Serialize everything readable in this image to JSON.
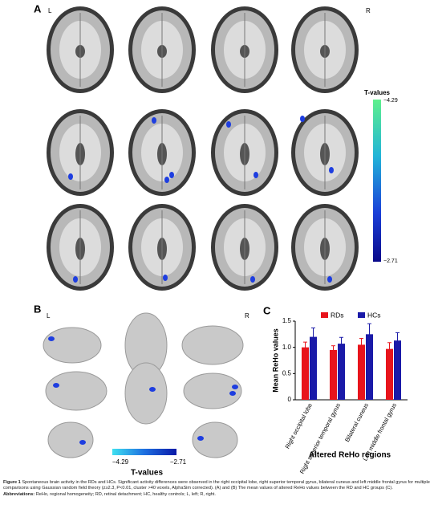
{
  "panel_a": {
    "label": "A",
    "left": "L",
    "right": "R",
    "colorbar": {
      "title": "T-values",
      "ticks": [
        "−4.29",
        "−2.71"
      ]
    }
  },
  "panel_b": {
    "label": "B",
    "left": "L",
    "right": "R",
    "colorbar": {
      "title": "T-values",
      "ticks": [
        "−4.29",
        "−2.71"
      ]
    }
  },
  "panel_c": {
    "label": "C"
  },
  "chart_data": {
    "type": "bar",
    "ylabel": "Mean ReHo values",
    "xlabel": "Altered ReHo regions",
    "categories": [
      "Right occipital lobe",
      "Right superior temporal gyrus",
      "Bilateral cuneus",
      "Left middle frontal gyrus"
    ],
    "series": [
      {
        "name": "RDs",
        "color": "#e8141c",
        "values": [
          1.0,
          0.95,
          1.05,
          0.97
        ],
        "errors": [
          0.1,
          0.08,
          0.12,
          0.12
        ]
      },
      {
        "name": "HCs",
        "color": "#1a1aa8",
        "values": [
          1.2,
          1.07,
          1.25,
          1.13
        ],
        "errors": [
          0.17,
          0.12,
          0.2,
          0.15
        ]
      }
    ],
    "ylim": [
      0,
      1.5
    ],
    "yticks": [
      0,
      0.5,
      {
        "value": 1,
        "label": "1.0"
      },
      1.5
    ],
    "legend": "top"
  },
  "caption": {
    "label": "Figure 1",
    "lines": [
      "Spontaneous brain activity in the RDs and HCs. Significant activity differences were observed in the right occipital lobe, right superior temporal gyrus, bilateral cuneus and left middle frontal gyrus for multiple comparisons using Gaussian random field theory (z≥2.3, P<0.01, cluster >40 voxels, AlphaSim corrected). (A) and (B) The mean values of altered ReHo values between the RD and HC groups (C)."
    ],
    "abbr_label": "Abbreviations:",
    "abbr_text": "ReHo, regional homogeneity; RD, retinal detachment; HC, healthy controls; L, left; R, right."
  }
}
